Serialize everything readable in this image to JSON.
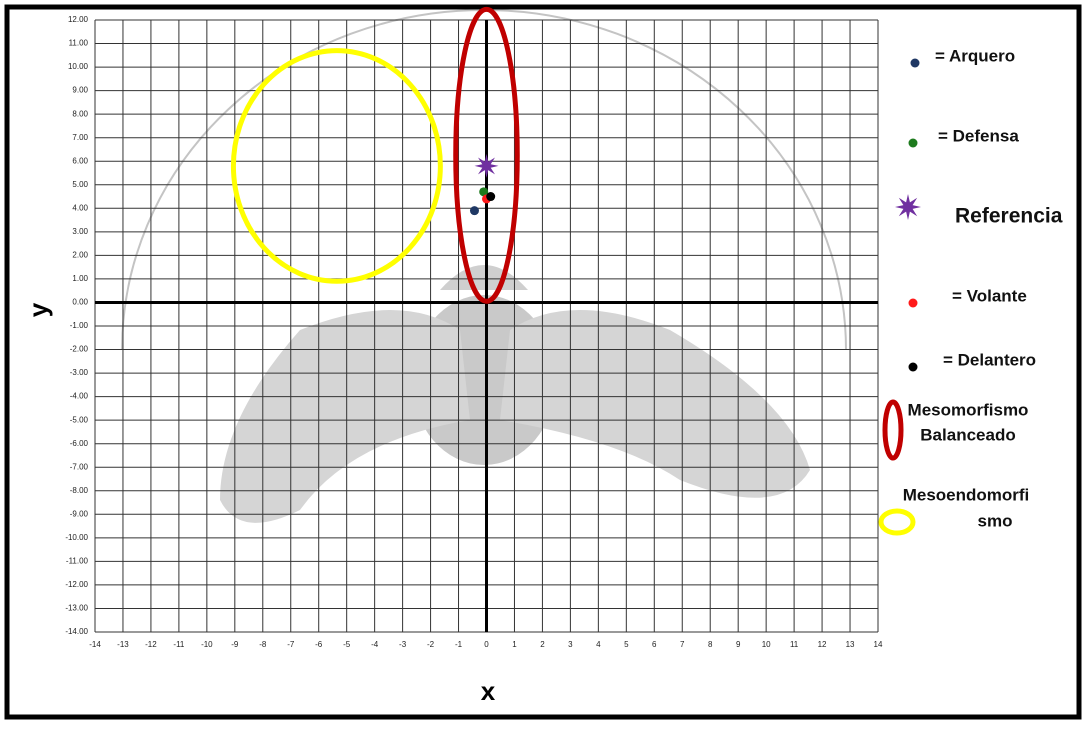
{
  "chart_data": {
    "type": "scatter",
    "x_label": "x",
    "y_label": "y",
    "xlim": [
      -14,
      14
    ],
    "ylim": [
      -14,
      12
    ],
    "xticks": [
      -14,
      -13,
      -12,
      -11,
      -10,
      -9,
      -8,
      -7,
      -6,
      -5,
      -4,
      -3,
      -2,
      -1,
      0,
      1,
      2,
      3,
      4,
      5,
      6,
      7,
      8,
      9,
      10,
      11,
      12,
      13,
      14
    ],
    "yticks": [
      {
        "value": 12,
        "label": "12.00"
      },
      {
        "value": 11,
        "label": "11.00"
      },
      {
        "value": 10,
        "label": "10.00"
      },
      {
        "value": 9,
        "label": "9.00"
      },
      {
        "value": 8,
        "label": "8.00"
      },
      {
        "value": 7,
        "label": "7.00"
      },
      {
        "value": 6,
        "label": "6.00"
      },
      {
        "value": 5,
        "label": "5.00"
      },
      {
        "value": 4,
        "label": "4.00"
      },
      {
        "value": 3,
        "label": "3.00"
      },
      {
        "value": 2,
        "label": "2.00"
      },
      {
        "value": 1,
        "label": "1.00"
      },
      {
        "value": 0,
        "label": "0.00"
      },
      {
        "value": -1,
        "label": "-1.00"
      },
      {
        "value": -2,
        "label": "-2.00"
      },
      {
        "value": -3,
        "label": "-3.00"
      },
      {
        "value": -4,
        "label": "-4.00"
      },
      {
        "value": -5,
        "label": "-5.00"
      },
      {
        "value": -6,
        "label": "-6.00"
      },
      {
        "value": -7,
        "label": "-7.00"
      },
      {
        "value": -8,
        "label": "-8.00"
      },
      {
        "value": -9,
        "label": "-9.00"
      },
      {
        "value": -10,
        "label": "-10.00"
      },
      {
        "value": -11,
        "label": "-11.00"
      },
      {
        "value": -12,
        "label": "-12.00"
      },
      {
        "value": -13,
        "label": "-13.00"
      },
      {
        "value": -14,
        "label": "-14.00"
      }
    ],
    "grid": true,
    "series": [
      {
        "name": "= Arquero",
        "color": "#1f3864",
        "marker": "dot",
        "x": [
          -0.43
        ],
        "values": [
          3.9
        ]
      },
      {
        "name": "= Defensa",
        "color": "#1e7b1e",
        "marker": "dot",
        "x": [
          -0.1
        ],
        "values": [
          4.7
        ]
      },
      {
        "name": "Referencia",
        "color": "#7030a0",
        "marker": "star",
        "x": [
          0
        ],
        "values": [
          5.8
        ]
      },
      {
        "name": "= Volante",
        "color": "#ff1a1a",
        "marker": "dot",
        "x": [
          0
        ],
        "values": [
          4.4
        ]
      },
      {
        "name": "= Delantero",
        "color": "#000000",
        "marker": "dot",
        "x": [
          0.15
        ],
        "values": [
          4.5
        ]
      }
    ],
    "regions": [
      {
        "label": [
          "Mesomorfismo",
          "Balanceado"
        ],
        "color": "#c00000",
        "cx": 0,
        "cy": 6.25,
        "rx": 1.1,
        "ry": 6.2
      },
      {
        "label": [
          "Mesoendomorfi",
          "smo"
        ],
        "color": "#ffff00",
        "cx": -5.35,
        "cy": 5.8,
        "rx": 3.7,
        "ry": 4.9
      }
    ]
  }
}
